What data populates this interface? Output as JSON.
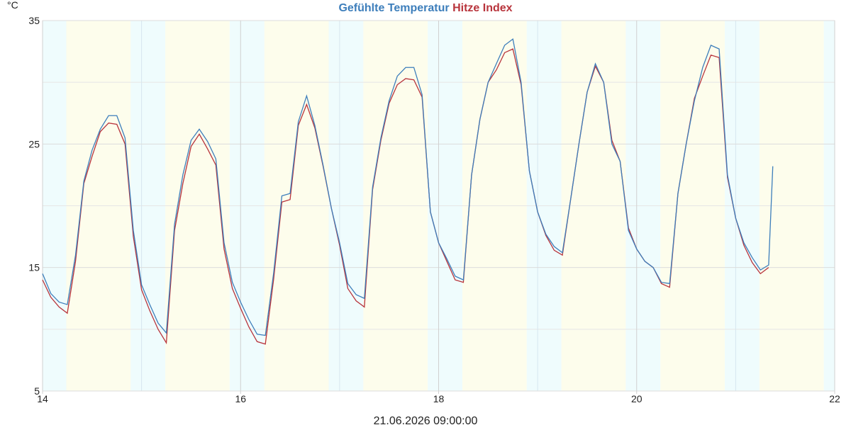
{
  "chart_data": {
    "type": "line",
    "y_unit": "°C",
    "x_label": "21.06.2026 09:00:00",
    "x": [
      14.0,
      14.083,
      14.167,
      14.25,
      14.333,
      14.417,
      14.5,
      14.583,
      14.667,
      14.75,
      14.833,
      14.917,
      15.0,
      15.083,
      15.167,
      15.25,
      15.333,
      15.417,
      15.5,
      15.583,
      15.667,
      15.75,
      15.833,
      15.917,
      16.0,
      16.083,
      16.167,
      16.25,
      16.333,
      16.417,
      16.5,
      16.583,
      16.667,
      16.75,
      16.833,
      16.917,
      17.0,
      17.083,
      17.167,
      17.25,
      17.333,
      17.417,
      17.5,
      17.583,
      17.667,
      17.75,
      17.833,
      17.917,
      18.0,
      18.083,
      18.167,
      18.25,
      18.333,
      18.417,
      18.5,
      18.583,
      18.667,
      18.75,
      18.833,
      18.917,
      19.0,
      19.083,
      19.167,
      19.25,
      19.333,
      19.417,
      19.5,
      19.583,
      19.667,
      19.75,
      19.833,
      19.917,
      20.0,
      20.083,
      20.167,
      20.25,
      20.333,
      20.417,
      20.5,
      20.583,
      20.667,
      20.75,
      20.833,
      20.917,
      21.0,
      21.083,
      21.167,
      21.25,
      21.333,
      21.375
    ],
    "series": [
      {
        "name": "Gefühlte Temperatur",
        "color": "#3d7ebb",
        "values": [
          14.5,
          12.9,
          12.2,
          12.0,
          16,
          22,
          24.5,
          26.2,
          27.3,
          27.3,
          25.5,
          18,
          13.6,
          12,
          10.5,
          9.7,
          18.5,
          22.5,
          25.3,
          26.2,
          25.2,
          23.8,
          17,
          13.8,
          12.2,
          10.8,
          9.6,
          9.5,
          14.5,
          20.8,
          21,
          26.8,
          28.9,
          26.5,
          23.3,
          19.8,
          17,
          13.7,
          12.8,
          12.5,
          21.5,
          25.5,
          28.5,
          30.5,
          31.2,
          31.2,
          29,
          19.5,
          17,
          15.7,
          14.3,
          14.0,
          22.5,
          27,
          30,
          31.5,
          33,
          33.5,
          30,
          22.8,
          19.5,
          17.7,
          16.7,
          16.2,
          20.5,
          25,
          29.2,
          31.5,
          30,
          25,
          23.6,
          18,
          16.5,
          15.5,
          15,
          13.8,
          13.7,
          21,
          25,
          28.5,
          31.2,
          33,
          32.7,
          22.5,
          19,
          17,
          15.8,
          14.8,
          15.2,
          23.2
        ]
      },
      {
        "name": "Hitze Index",
        "color": "#b8343c",
        "values": [
          14.0,
          12.6,
          11.8,
          11.3,
          15.5,
          21.8,
          24,
          26,
          26.7,
          26.6,
          25,
          17.5,
          13.2,
          11.5,
          10,
          8.9,
          18,
          21.8,
          24.8,
          25.8,
          24.6,
          23.3,
          16.5,
          13.3,
          11.7,
          10.2,
          9.0,
          8.8,
          14,
          20.3,
          20.5,
          26.5,
          28.2,
          26.3,
          23.2,
          19.8,
          16.8,
          13.3,
          12.3,
          11.8,
          21.3,
          25.3,
          28.3,
          29.8,
          30.3,
          30.2,
          28.8,
          19.5,
          17,
          15.5,
          14,
          13.8,
          22.5,
          27,
          30,
          31,
          32.4,
          32.7,
          29.8,
          22.8,
          19.5,
          17.6,
          16.4,
          16,
          20.5,
          25,
          29.2,
          31.3,
          30,
          25.3,
          23.6,
          18.2,
          16.5,
          15.5,
          15,
          13.7,
          13.4,
          21,
          25,
          28.7,
          30.5,
          32.2,
          32,
          22.3,
          19,
          16.8,
          15.4,
          14.5,
          15,
          null
        ]
      }
    ],
    "xlim": [
      14,
      22
    ],
    "xticks": [
      14,
      16,
      18,
      20,
      22
    ],
    "x_minor_grid": [
      15,
      17,
      19,
      21
    ],
    "ylim": [
      5,
      35
    ],
    "yticks": [
      5,
      15,
      25,
      35
    ],
    "y_minor_grid": [
      10,
      20,
      30
    ],
    "grid": true
  }
}
